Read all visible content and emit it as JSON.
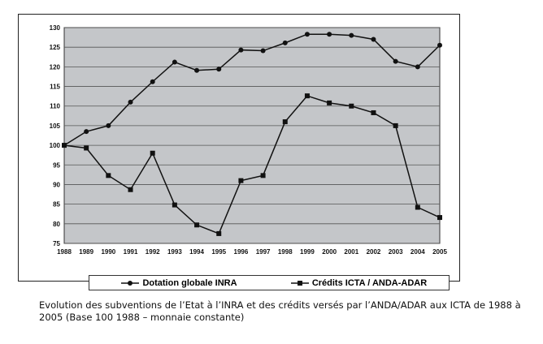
{
  "chart_data": {
    "type": "line",
    "x": [
      1988,
      1989,
      1990,
      1991,
      1992,
      1993,
      1994,
      1995,
      1996,
      1997,
      1998,
      1999,
      2000,
      2001,
      2002,
      2003,
      2004,
      2005
    ],
    "series": [
      {
        "name": "Dotation globale INRA",
        "marker": "circle",
        "values": [
          100,
          103.5,
          105,
          111,
          116.2,
          121.2,
          119.1,
          119.4,
          124.3,
          124.1,
          126.1,
          128.3,
          128.3,
          128,
          127,
          121.4,
          120,
          125.5
        ]
      },
      {
        "name": "Crédits ICTA / ANDA-ADAR",
        "marker": "square",
        "values": [
          100,
          99.3,
          92.3,
          88.7,
          98,
          84.8,
          79.7,
          77.5,
          91,
          92.3,
          106,
          112.6,
          110.8,
          110,
          108.3,
          105,
          84.2,
          81.6
        ]
      }
    ],
    "ylim": [
      75,
      130
    ],
    "yticks": [
      75,
      80,
      85,
      90,
      95,
      100,
      105,
      110,
      115,
      120,
      125,
      130
    ],
    "grid": true,
    "legend": "bottom",
    "caption": "Evolution des subventions de l’Etat à l’INRA et des crédits versés par l’ANDA/ADAR aux ICTA de 1988 à 2005 (Base 100 1988 – monnaie constante)",
    "colors": {
      "plot_bg": "#c4c6c9",
      "line": "#111111",
      "grid": "#555555"
    }
  }
}
